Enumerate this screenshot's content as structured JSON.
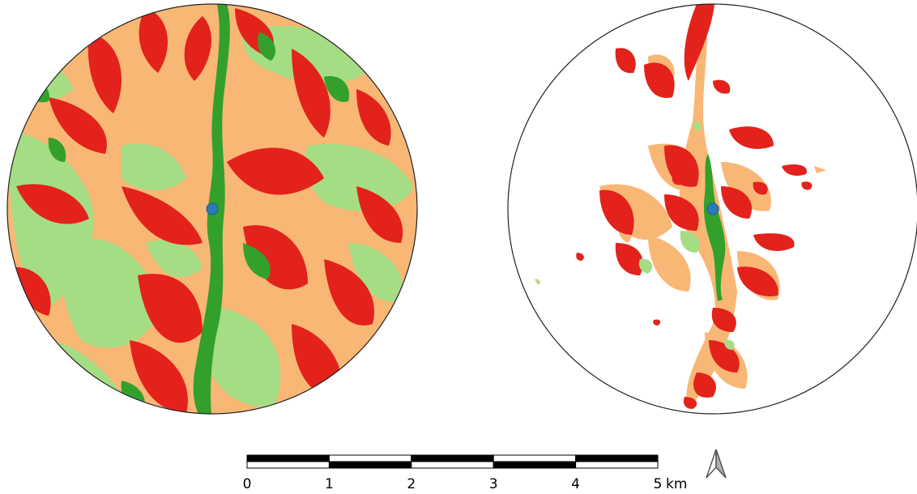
{
  "maps": {
    "left": {
      "view": "full-classification"
    },
    "right": {
      "view": "visible-area-classification"
    }
  },
  "legend_colors": {
    "class_1": "#e3221c",
    "class_2": "#f9b775",
    "class_3": "#a5dd85",
    "class_4": "#33a02c"
  },
  "observer_point": {
    "color": "#2c7bb6",
    "icon": "observer-point-icon"
  },
  "scale_bar": {
    "ticks": [
      "0",
      "1",
      "2",
      "3",
      "4",
      "5"
    ],
    "unit": "km"
  },
  "north_arrow": {
    "icon": "north-arrow-icon"
  }
}
